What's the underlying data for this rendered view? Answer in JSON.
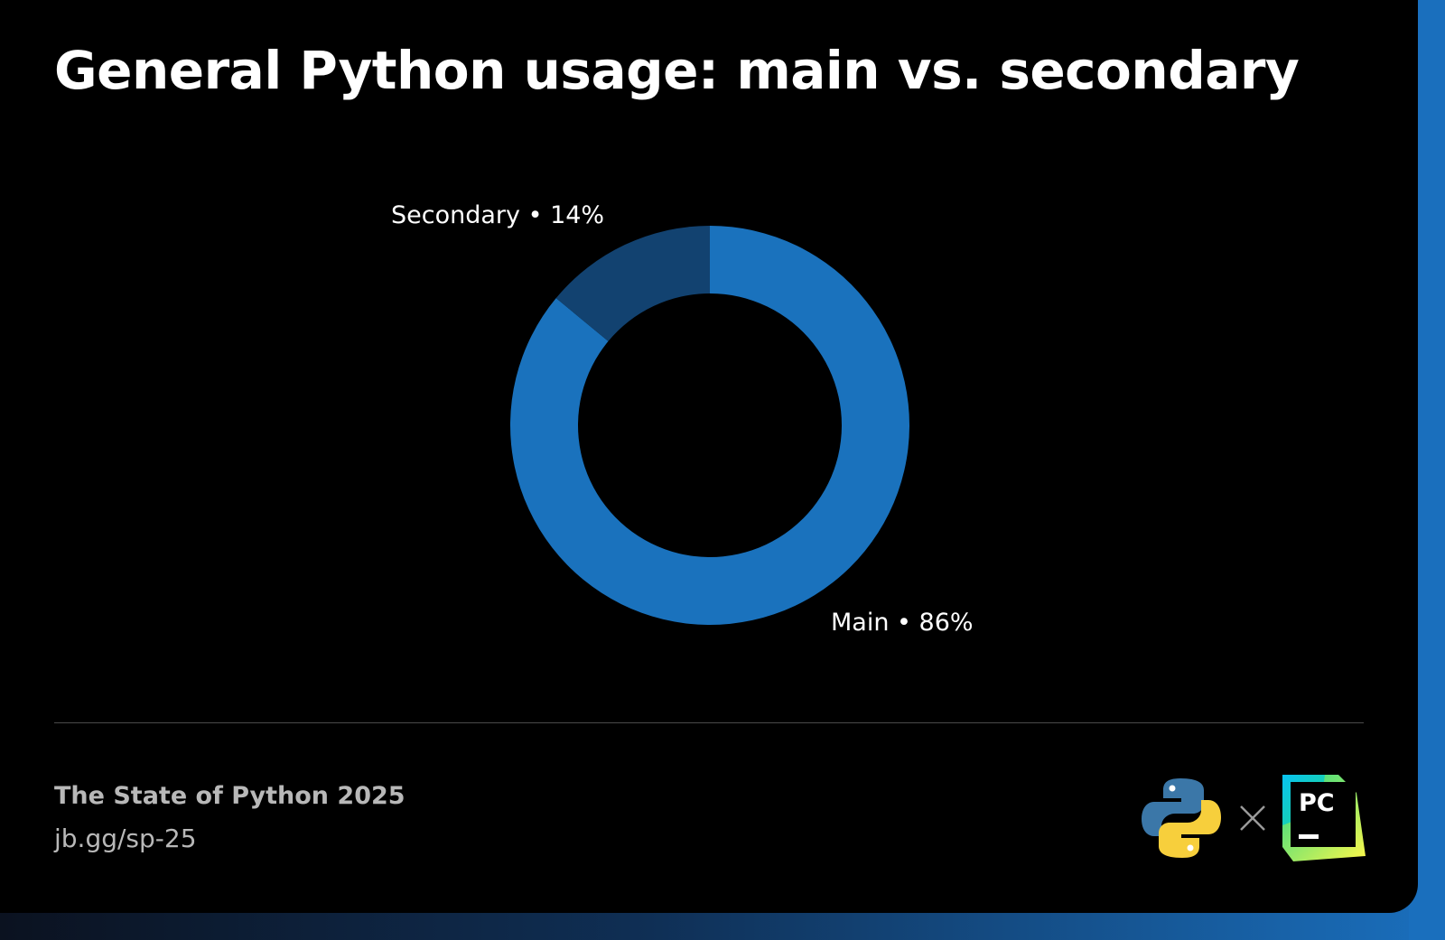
{
  "header": {
    "title": "General Python usage: main vs. secondary"
  },
  "chart_data": {
    "type": "pie",
    "variant": "donut",
    "title": "General Python usage: main vs. secondary",
    "unit": "%",
    "slices": [
      {
        "name": "Main",
        "value": 86,
        "label": "Main • 86%",
        "color": "#1a72bd"
      },
      {
        "name": "Secondary",
        "value": 14,
        "label": "Secondary • 14%",
        "color": "#124270"
      }
    ],
    "legend": "none"
  },
  "footer": {
    "source_title": "The State of Python 2025",
    "source_url": "jb.gg/sp-25",
    "logos": [
      {
        "icon": "python-logo-icon"
      },
      {
        "icon": "times-icon"
      },
      {
        "icon": "pycharm-logo-icon",
        "text": "PC"
      }
    ]
  },
  "colors": {
    "background": "#000000",
    "accent": "#1a6fbd",
    "text": "#ffffff",
    "muted_text": "#b8b8b8"
  }
}
